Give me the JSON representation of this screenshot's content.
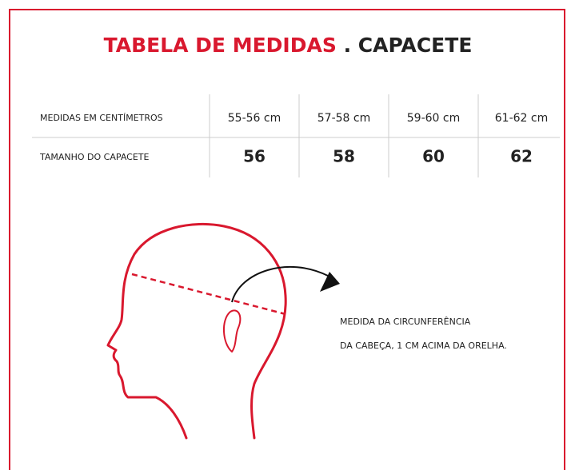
{
  "title": {
    "highlight": "TABELA DE MEDIDAS",
    "rest": ". CAPACETE"
  },
  "table": {
    "rows": [
      [
        "MEDIDAS EM CENTÍMETROS",
        "55-56 cm",
        "57-58 cm",
        "59-60 cm",
        "61-62 cm"
      ],
      [
        "TAMANHO DO CAPACETE",
        "56",
        "58",
        "60",
        "62"
      ]
    ]
  },
  "note": {
    "lines": [
      "MEDIDA DA CIRCUNFERÊNCIA",
      "DA CABEÇA, 1 CM ACIMA DA ORELHA."
    ]
  }
}
